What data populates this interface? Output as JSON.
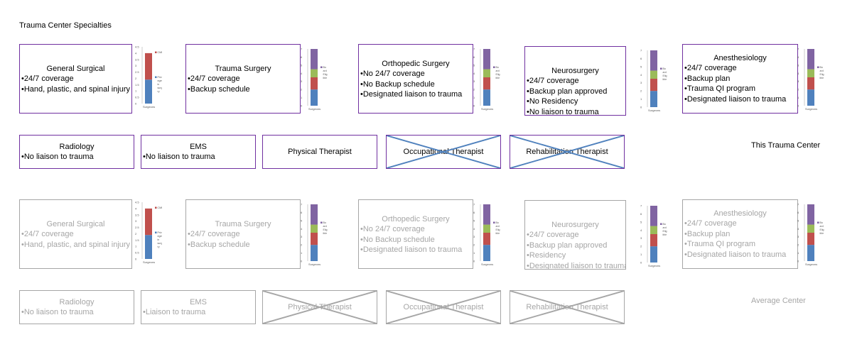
{
  "title": "Trauma Center Specialties",
  "colors": {
    "purple": "#7030a0",
    "gray": "#a6a6a6",
    "cross_blue": "#4f81bd",
    "bar_blue": "#4f81bd",
    "bar_red": "#c0504d",
    "bar_green": "#9bbb59",
    "bar_purple": "#8064a2"
  },
  "this_center": {
    "label": "This Trauma Center",
    "specialties": [
      {
        "title": "General Surgical",
        "lines": [
          "•24/7 coverage",
          "•Hand, plastic, and spinal injury"
        ]
      },
      {
        "title": "Trauma Surgery",
        "lines": [
          "•24/7 coverage",
          "•Backup schedule"
        ]
      },
      {
        "title": "Orthopedic Surgery",
        "lines": [
          "•No 24/7 coverage",
          "•No Backup schedule",
          "•Designated liaison to trauma"
        ]
      },
      {
        "title": "Neurosurgery",
        "lines": [
          "•24/7 coverage",
          "•Backup plan approved",
          "•No Residency",
          "•No liaison to trauma"
        ]
      },
      {
        "title": "Anesthesiology",
        "lines": [
          "•24/7 coverage",
          "•Backup plan",
          "•Trauma QI program",
          "•Designated liaison to trauma"
        ]
      }
    ],
    "services": [
      {
        "title": "Radiology",
        "lines": [
          "•No liaison to trauma"
        ],
        "crossed": false
      },
      {
        "title": "EMS",
        "lines": [
          "•No liaison to trauma"
        ],
        "crossed": false
      },
      {
        "title": "Physical Therapist",
        "lines": [],
        "crossed": false
      },
      {
        "title": "Occupational Therapist",
        "lines": [],
        "crossed": true
      },
      {
        "title": "Rehabilitation Therapist",
        "lines": [],
        "crossed": true
      }
    ]
  },
  "average_center": {
    "label": "Average Center",
    "specialties": [
      {
        "title": "General Surgical",
        "lines": [
          "•24/7 coverage",
          "•Hand, plastic, and spinal injury"
        ]
      },
      {
        "title": "Trauma Surgery",
        "lines": [
          "•24/7 coverage",
          "•Backup schedule"
        ]
      },
      {
        "title": "Orthopedic Surgery",
        "lines": [
          "•No 24/7 coverage",
          "•No Backup schedule",
          "•Designated liaison to trauma"
        ]
      },
      {
        "title": "Neurosurgery",
        "lines": [
          "•24/7 coverage",
          "•Backup plan approved",
          "•Residency",
          "•Designated liaison to trauma"
        ]
      },
      {
        "title": "Anesthesiology",
        "lines": [
          "•24/7 coverage",
          "•Backup plan",
          "•Trauma QI program",
          "•Designated liaison to trauma"
        ]
      }
    ],
    "services": [
      {
        "title": "Radiology",
        "lines": [
          "•No liaison to trauma"
        ],
        "crossed": false
      },
      {
        "title": "EMS",
        "lines": [
          "•Liaison to trauma"
        ],
        "crossed": false
      },
      {
        "title": "Physical Therapist",
        "lines": [],
        "crossed": true
      },
      {
        "title": "Occupational Therapist",
        "lines": [],
        "crossed": true
      },
      {
        "title": "Rehabilitation Therapist",
        "lines": [],
        "crossed": true
      }
    ]
  },
  "chart_data": [
    {
      "type": "bar",
      "stacked": true,
      "categories": [
        "Surgeons"
      ],
      "ylim": [
        0,
        4.5
      ],
      "ticks": [
        "0",
        "0.5",
        "1",
        "1.5",
        "2",
        "2.5",
        "3",
        "3.5",
        "4",
        "4.5"
      ],
      "series": [
        {
          "name": "Privil eges in surge ry",
          "values": [
            1.9
          ],
          "color": "#4f81bd"
        },
        {
          "name": "CME",
          "values": [
            2.1
          ],
          "color": "#c0504d"
        }
      ]
    },
    {
      "type": "bar",
      "stacked": true,
      "categories": [
        "Surgeons"
      ],
      "ylim": [
        0,
        7
      ],
      "ticks": [
        "0",
        "1",
        "2",
        "3",
        "4",
        "5",
        "6",
        "7"
      ],
      "series": [
        {
          "name": "",
          "values": [
            2
          ],
          "color": "#4f81bd"
        },
        {
          "name": "",
          "values": [
            1.5
          ],
          "color": "#c0504d"
        },
        {
          "name": "",
          "values": [
            1
          ],
          "color": "#9bbb59"
        },
        {
          "name": "Bo ard Elig ible",
          "values": [
            2.5
          ],
          "color": "#8064a2"
        }
      ]
    },
    {
      "type": "bar",
      "stacked": true,
      "categories": [
        "Surgeons"
      ],
      "ylim": [
        0,
        7
      ],
      "ticks": [
        "0",
        "1",
        "2",
        "3",
        "4",
        "5",
        "6",
        "7"
      ],
      "series": [
        {
          "name": "",
          "values": [
            2
          ],
          "color": "#4f81bd"
        },
        {
          "name": "",
          "values": [
            1.5
          ],
          "color": "#c0504d"
        },
        {
          "name": "",
          "values": [
            1
          ],
          "color": "#9bbb59"
        },
        {
          "name": "Bo ard Elig ible",
          "values": [
            2.5
          ],
          "color": "#8064a2"
        }
      ]
    },
    {
      "type": "bar",
      "stacked": true,
      "categories": [
        "Surgeons"
      ],
      "ylim": [
        0,
        7
      ],
      "ticks": [
        "0",
        "1",
        "2",
        "3",
        "4",
        "5",
        "6",
        "7"
      ],
      "series": [
        {
          "name": "",
          "values": [
            2
          ],
          "color": "#4f81bd"
        },
        {
          "name": "",
          "values": [
            1.5
          ],
          "color": "#c0504d"
        },
        {
          "name": "",
          "values": [
            1
          ],
          "color": "#9bbb59"
        },
        {
          "name": "Bo ard Elig ible",
          "values": [
            2.5
          ],
          "color": "#8064a2"
        }
      ]
    },
    {
      "type": "bar",
      "stacked": true,
      "categories": [
        "Surgeons"
      ],
      "ylim": [
        0,
        7
      ],
      "ticks": [
        "0",
        "1",
        "2",
        "3",
        "4",
        "5",
        "6",
        "7"
      ],
      "series": [
        {
          "name": "",
          "values": [
            2
          ],
          "color": "#4f81bd"
        },
        {
          "name": "",
          "values": [
            1.5
          ],
          "color": "#c0504d"
        },
        {
          "name": "",
          "values": [
            1
          ],
          "color": "#9bbb59"
        },
        {
          "name": "Bo ard Elig ible",
          "values": [
            2.5
          ],
          "color": "#8064a2"
        }
      ]
    }
  ]
}
